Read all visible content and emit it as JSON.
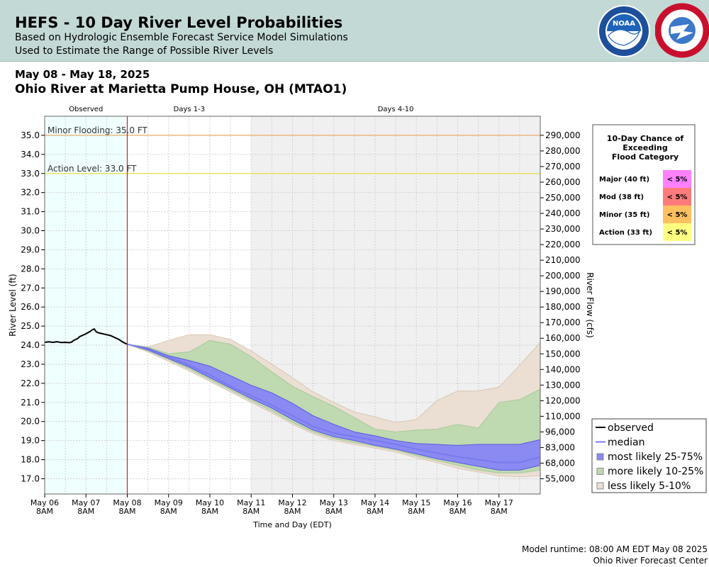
{
  "header": {
    "title": "HEFS - 10 Day River Level Probabilities",
    "subtitle1": "Based on Hydrologic Ensemble Forecast Service Model Simulations",
    "subtitle2": "Used to Estimate the Range of Possible River Levels",
    "noaa_logo_text": "NOAA",
    "nws_logo_text": "NATIONAL WEATHER SERVICE"
  },
  "date_range": "May 08 - May 18, 2025",
  "gauge_name": "Ohio River at Marietta Pump House, OH (MTAO1)",
  "footer": {
    "runtime": "Model runtime: 08:00 AM EDT May 08 2025",
    "center": "Ohio River Forecast Center"
  },
  "colors": {
    "observed_bg": "#effffe",
    "days13_bg": "#ffffff",
    "days410_bg": "#f0f0f0",
    "observed": "#000000",
    "median": "#7a7af0",
    "band_25_75": "#8a8af2",
    "band_10_25": "#bfd9b0",
    "band_5_10": "#eadfd2",
    "minor_line": "#e9a25a",
    "action_line": "#e8e04a",
    "now_line": "#cc2222"
  },
  "chart_data": {
    "type": "area",
    "xlabel": "Time and Day (EDT)",
    "ylabel": "River Level (ft)",
    "y2label": "River Flow (cfs)",
    "ylim": [
      16.2,
      36.0
    ],
    "xlim": [
      0,
      12
    ],
    "grid": true,
    "x_ticks": [
      {
        "day": "May 06",
        "time": "8AM"
      },
      {
        "day": "May 07",
        "time": "8AM"
      },
      {
        "day": "May 08",
        "time": "8AM"
      },
      {
        "day": "May 09",
        "time": "8AM"
      },
      {
        "day": "May 10",
        "time": "8AM"
      },
      {
        "day": "May 11",
        "time": "8AM"
      },
      {
        "day": "May 12",
        "time": "8AM"
      },
      {
        "day": "May 13",
        "time": "8AM"
      },
      {
        "day": "May 14",
        "time": "8AM"
      },
      {
        "day": "May 15",
        "time": "8AM"
      },
      {
        "day": "May 16",
        "time": "8AM"
      },
      {
        "day": "May 17",
        "time": "8AM"
      }
    ],
    "y_ticks": [
      "17.0",
      "18.0",
      "19.0",
      "20.0",
      "21.0",
      "22.0",
      "23.0",
      "24.0",
      "25.0",
      "26.0",
      "27.0",
      "28.0",
      "29.0",
      "30.0",
      "31.0",
      "32.0",
      "33.0",
      "34.0",
      "35.0"
    ],
    "y2_ticks": [
      "55,000",
      "68,000",
      "83,000",
      "96,000",
      "110,000",
      "120,000",
      "130,000",
      "140,000",
      "150,000",
      "160,000",
      "170,000",
      "180,000",
      "190,000",
      "200,000",
      "210,000",
      "220,000",
      "230,000",
      "240,000",
      "250,000",
      "260,000",
      "270,000",
      "280,000",
      "290,000"
    ],
    "periods": [
      {
        "label": "Observed",
        "start": 0,
        "end": 2
      },
      {
        "label": "Days 1-3",
        "start": 2,
        "end": 5
      },
      {
        "label": "Days 4-10",
        "start": 5,
        "end": 12
      }
    ],
    "thresholds": [
      {
        "label": "Minor Flooding: 35.0 FT",
        "value": 35.0,
        "key": "minor_line"
      },
      {
        "label": "Action Level: 33.0 FT",
        "value": 33.0,
        "key": "action_line"
      }
    ],
    "observed": {
      "x": [
        0,
        0.1,
        0.2,
        0.3,
        0.4,
        0.5,
        0.6,
        0.65,
        0.7,
        0.8,
        0.85,
        0.9,
        1.0,
        1.1,
        1.15,
        1.2,
        1.25,
        1.3,
        1.4,
        1.5,
        1.6,
        1.7,
        1.8,
        1.9,
        2.0
      ],
      "y": [
        24.15,
        24.18,
        24.15,
        24.18,
        24.14,
        24.15,
        24.13,
        24.16,
        24.25,
        24.35,
        24.45,
        24.5,
        24.6,
        24.72,
        24.8,
        24.85,
        24.7,
        24.65,
        24.6,
        24.55,
        24.5,
        24.4,
        24.3,
        24.15,
        24.05
      ]
    },
    "x_forecast": [
      2,
      2.5,
      3,
      3.5,
      4,
      4.5,
      5,
      5.5,
      6,
      6.5,
      7,
      7.5,
      8,
      8.5,
      9,
      9.5,
      10,
      10.5,
      11,
      11.5,
      12
    ],
    "median": [
      24.05,
      23.8,
      23.4,
      22.95,
      22.45,
      21.85,
      21.35,
      20.85,
      20.3,
      19.75,
      19.4,
      19.2,
      19.0,
      18.8,
      18.55,
      18.35,
      18.15,
      18.0,
      17.85,
      17.85,
      18.15
    ],
    "band_25_75": {
      "lower": [
        24.05,
        23.75,
        23.3,
        22.85,
        22.3,
        21.75,
        21.2,
        20.7,
        20.1,
        19.55,
        19.2,
        19.0,
        18.75,
        18.55,
        18.3,
        18.05,
        17.85,
        17.65,
        17.45,
        17.45,
        17.7
      ],
      "upper": [
        24.05,
        23.85,
        23.45,
        23.2,
        22.9,
        22.4,
        21.9,
        21.5,
        20.95,
        20.3,
        19.85,
        19.45,
        19.25,
        19.0,
        18.85,
        18.8,
        18.75,
        18.8,
        18.8,
        18.8,
        19.05
      ]
    },
    "band_10_25": {
      "lower": [
        24.05,
        23.7,
        23.25,
        22.75,
        22.2,
        21.65,
        21.1,
        20.55,
        19.95,
        19.45,
        19.1,
        18.9,
        18.7,
        18.5,
        18.2,
        17.95,
        17.7,
        17.45,
        17.3,
        17.3,
        17.45
      ],
      "upper": [
        24.05,
        23.9,
        23.55,
        23.65,
        24.25,
        24.05,
        23.4,
        22.6,
        21.85,
        21.3,
        20.8,
        20.2,
        19.6,
        19.45,
        19.55,
        19.6,
        19.85,
        19.65,
        21.0,
        21.15,
        21.7
      ]
    },
    "band_5_10": {
      "lower": [
        24.05,
        23.65,
        23.15,
        22.65,
        22.1,
        21.55,
        21.0,
        20.45,
        19.85,
        19.35,
        19.0,
        18.8,
        18.6,
        18.4,
        18.1,
        17.85,
        17.55,
        17.35,
        17.15,
        17.1,
        17.15
      ],
      "upper": [
        24.05,
        23.9,
        24.25,
        24.55,
        24.55,
        24.3,
        23.7,
        23.0,
        22.3,
        21.55,
        21.0,
        20.5,
        20.25,
        19.95,
        20.1,
        21.1,
        21.6,
        21.6,
        21.8,
        22.95,
        24.15
      ]
    },
    "legend": {
      "placement": "bottom-right",
      "items": [
        {
          "label": "observed",
          "key": "observed",
          "kind": "line"
        },
        {
          "label": "median",
          "key": "median",
          "kind": "line"
        },
        {
          "label": "most likely 25-75%",
          "key": "band_25_75",
          "kind": "box"
        },
        {
          "label": "more likely 10-25%",
          "key": "band_10_25",
          "kind": "box"
        },
        {
          "label": "less likely 5-10%",
          "key": "band_5_10",
          "kind": "box"
        }
      ]
    },
    "exceedance_table": {
      "placement": "top-right",
      "title": [
        "10-Day Chance of",
        "Exceeding",
        "Flood Category"
      ],
      "rows": [
        {
          "label": "Major (40 ft)",
          "value": "< 5%",
          "color": "#ff80ff"
        },
        {
          "label": "Mod (38 ft)",
          "value": "< 5%",
          "color": "#ff7a7a"
        },
        {
          "label": "Minor (35 ft)",
          "value": "< 5%",
          "color": "#ffc060"
        },
        {
          "label": "Action (33 ft)",
          "value": "< 5%",
          "color": "#ffff80"
        }
      ]
    }
  }
}
